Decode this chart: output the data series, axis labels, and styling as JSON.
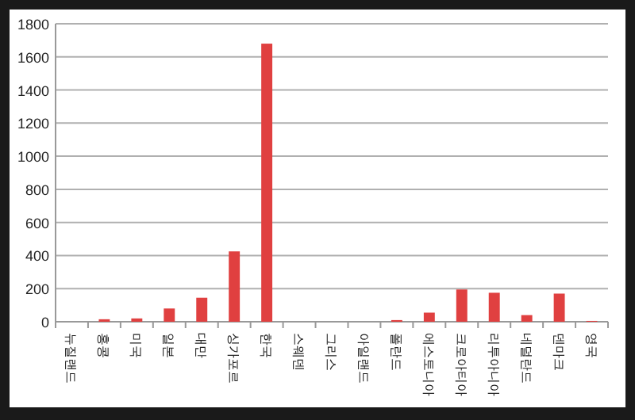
{
  "chart_data": {
    "type": "bar",
    "categories": [
      "뉴질랜드",
      "홍콩",
      "미국",
      "일본",
      "대만",
      "싱가포르",
      "한국",
      "스웨덴",
      "그리스",
      "아일랜드",
      "폴란드",
      "에스토니아",
      "크로아티아",
      "리투아니아",
      "네덜란드",
      "덴마크",
      "영국"
    ],
    "series": [
      {
        "color": "#e04040",
        "values": [
          0,
          15,
          20,
          80,
          145,
          425,
          1680,
          0,
          0,
          0,
          10,
          55,
          195,
          175,
          40,
          170,
          5
        ]
      }
    ],
    "ylim": [
      0,
      1800
    ],
    "yticks": [
      0,
      200,
      400,
      600,
      800,
      1000,
      1200,
      1400,
      1600,
      1800
    ],
    "grid": "y"
  }
}
